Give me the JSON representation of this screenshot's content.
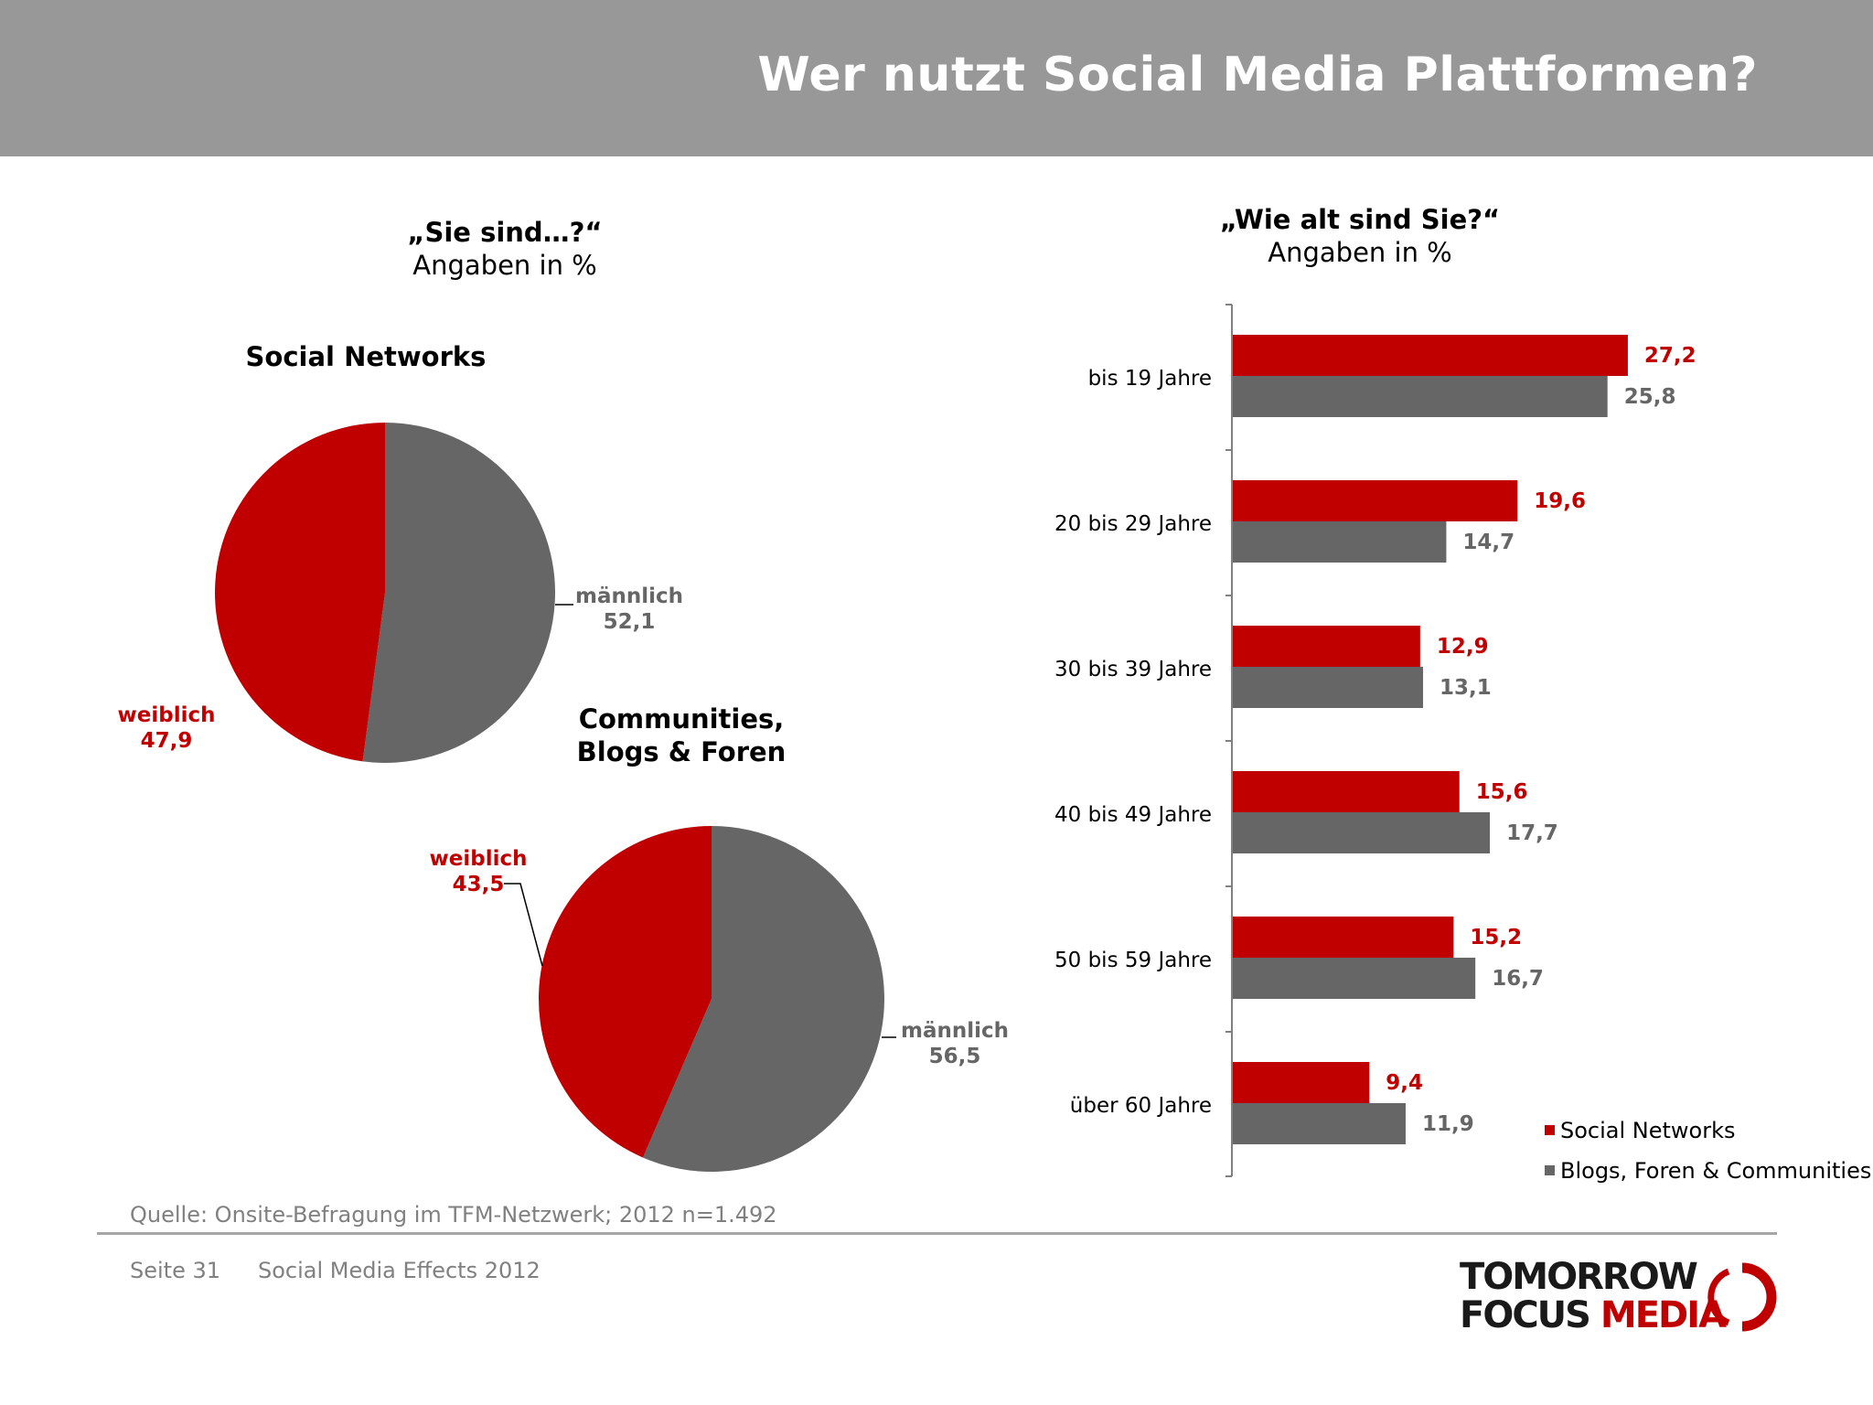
{
  "header": {
    "title": "Wer nutzt Social Media Plattformen?"
  },
  "colors": {
    "social_networks": "#c00000",
    "blogs_communities": "#666666",
    "header_bg": "#989898"
  },
  "left_question": {
    "title": "„Sie sind…?“",
    "subtitle": "Angaben in %"
  },
  "right_question": {
    "title": "„Wie alt sind Sie?“",
    "subtitle": "Angaben in %"
  },
  "chart_data": [
    {
      "type": "pie",
      "title": "Social Networks",
      "slices": [
        {
          "label": "männlich",
          "value": 52.1,
          "display": "52,1",
          "color": "#666666"
        },
        {
          "label": "weiblich",
          "value": 47.9,
          "display": "47,9",
          "color": "#c00000"
        }
      ]
    },
    {
      "type": "pie",
      "title_line1": "Communities,",
      "title_line2": "Blogs &  Foren",
      "slices": [
        {
          "label": "männlich",
          "value": 56.5,
          "display": "56,5",
          "color": "#666666"
        },
        {
          "label": "weiblich",
          "value": 43.5,
          "display": "43,5",
          "color": "#c00000"
        }
      ]
    },
    {
      "type": "bar",
      "orientation": "horizontal",
      "categories": [
        "bis 19 Jahre",
        "20 bis 29 Jahre",
        "30 bis 39 Jahre",
        "40 bis 49 Jahre",
        "50 bis 59 Jahre",
        "über 60 Jahre"
      ],
      "series": [
        {
          "name": "Social Networks",
          "color": "#c00000",
          "values": [
            27.2,
            19.6,
            12.9,
            15.6,
            15.2,
            9.4
          ],
          "labels": [
            "27,2",
            "19,6",
            "12,9",
            "15,6",
            "15,2",
            "9,4"
          ]
        },
        {
          "name": "Blogs, Foren & Communities",
          "color": "#666666",
          "values": [
            25.8,
            14.7,
            13.1,
            17.7,
            16.7,
            11.9
          ],
          "labels": [
            "25,8",
            "14,7",
            "13,1",
            "17,7",
            "16,7",
            "11,9"
          ]
        }
      ],
      "xlim": [
        0,
        30
      ],
      "legend_position": "bottom-right"
    }
  ],
  "source": "Quelle: Onsite-Befragung im TFM-Netzwerk; 2012 n=1.492",
  "footer": {
    "page": "Seite 31",
    "doc": "Social Media Effects 2012"
  },
  "logo": {
    "line1": "TOMORROW",
    "line2_a": "FOCUS",
    "line2_b": "MEDIA"
  }
}
